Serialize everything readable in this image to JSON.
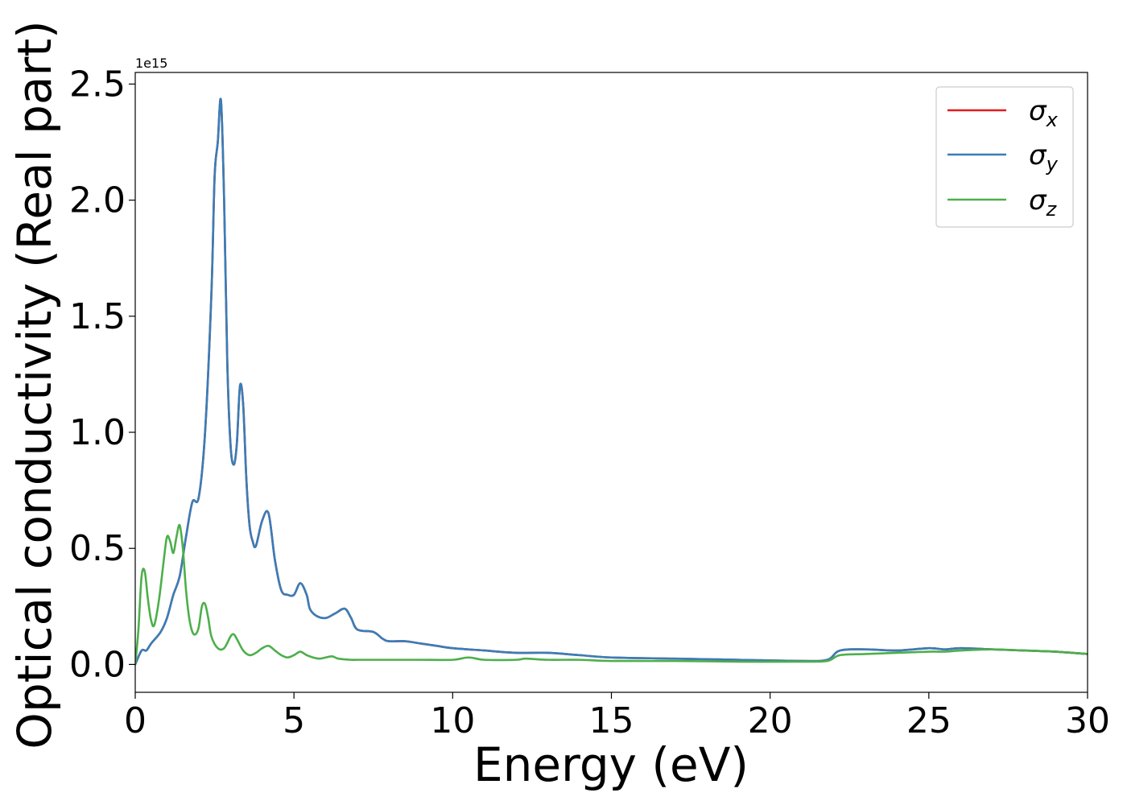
{
  "chart_data": {
    "type": "line",
    "xlabel": "Energy (eV)",
    "ylabel": "Optical conductivity (Real part)",
    "y_offset_label": "1e15",
    "y_scale": 1000000000000000.0,
    "xlim": [
      0,
      30
    ],
    "ylim": [
      -0.12,
      2.55
    ],
    "xticks": [
      0,
      5,
      10,
      15,
      20,
      25,
      30
    ],
    "xtick_labels": [
      "0",
      "5",
      "10",
      "15",
      "20",
      "25",
      "30"
    ],
    "yticks": [
      0.0,
      0.5,
      1.0,
      1.5,
      2.0,
      2.5
    ],
    "ytick_labels": [
      "0.0",
      "0.5",
      "1.0",
      "1.5",
      "2.0",
      "2.5"
    ],
    "grid": false,
    "legend_position": "top-right",
    "series": [
      {
        "name": "σx",
        "symbol": "σ",
        "subscript": "x",
        "color": "#e41a1c",
        "x": [
          0,
          0.2,
          0.35,
          0.5,
          0.8,
          1.0,
          1.2,
          1.4,
          1.6,
          1.8,
          2.0,
          2.2,
          2.4,
          2.5,
          2.6,
          2.7,
          2.8,
          2.9,
          3.0,
          3.1,
          3.2,
          3.3,
          3.4,
          3.5,
          3.6,
          3.7,
          3.8,
          4.0,
          4.2,
          4.4,
          4.6,
          4.8,
          5.0,
          5.2,
          5.4,
          5.5,
          5.7,
          6.0,
          6.3,
          6.6,
          6.8,
          7.0,
          7.5,
          7.8,
          8.0,
          8.5,
          9.0,
          9.5,
          10,
          11,
          12,
          13,
          14,
          15,
          17,
          19,
          21,
          21.8,
          22.2,
          23,
          24,
          25,
          25.5,
          26,
          27,
          28,
          29,
          30
        ],
        "y": [
          0,
          0.06,
          0.06,
          0.09,
          0.14,
          0.2,
          0.3,
          0.38,
          0.55,
          0.7,
          0.72,
          1.0,
          1.6,
          2.1,
          2.25,
          2.43,
          2.0,
          1.3,
          0.95,
          0.86,
          0.95,
          1.2,
          1.12,
          0.8,
          0.6,
          0.53,
          0.51,
          0.62,
          0.65,
          0.45,
          0.32,
          0.3,
          0.3,
          0.35,
          0.3,
          0.24,
          0.21,
          0.2,
          0.22,
          0.24,
          0.2,
          0.15,
          0.14,
          0.11,
          0.1,
          0.1,
          0.09,
          0.08,
          0.07,
          0.06,
          0.05,
          0.05,
          0.04,
          0.03,
          0.025,
          0.02,
          0.015,
          0.02,
          0.06,
          0.065,
          0.06,
          0.07,
          0.065,
          0.07,
          0.065,
          0.06,
          0.055,
          0.045
        ]
      },
      {
        "name": "σy",
        "symbol": "σ",
        "subscript": "y",
        "color": "#377eb8",
        "x": [
          0,
          0.2,
          0.35,
          0.5,
          0.8,
          1.0,
          1.2,
          1.4,
          1.6,
          1.8,
          2.0,
          2.2,
          2.4,
          2.5,
          2.6,
          2.7,
          2.8,
          2.9,
          3.0,
          3.1,
          3.2,
          3.3,
          3.4,
          3.5,
          3.6,
          3.7,
          3.8,
          4.0,
          4.2,
          4.4,
          4.6,
          4.8,
          5.0,
          5.2,
          5.4,
          5.5,
          5.7,
          6.0,
          6.3,
          6.6,
          6.8,
          7.0,
          7.5,
          7.8,
          8.0,
          8.5,
          9.0,
          9.5,
          10,
          11,
          12,
          13,
          14,
          15,
          17,
          19,
          21,
          21.8,
          22.2,
          23,
          24,
          25,
          25.5,
          26,
          27,
          28,
          29,
          30
        ],
        "y": [
          0,
          0.06,
          0.06,
          0.09,
          0.14,
          0.2,
          0.3,
          0.38,
          0.55,
          0.7,
          0.72,
          1.0,
          1.6,
          2.1,
          2.25,
          2.43,
          2.0,
          1.3,
          0.95,
          0.86,
          0.95,
          1.2,
          1.12,
          0.8,
          0.6,
          0.53,
          0.51,
          0.62,
          0.65,
          0.45,
          0.32,
          0.3,
          0.3,
          0.35,
          0.3,
          0.24,
          0.21,
          0.2,
          0.22,
          0.24,
          0.2,
          0.15,
          0.14,
          0.11,
          0.1,
          0.1,
          0.09,
          0.08,
          0.07,
          0.06,
          0.05,
          0.05,
          0.04,
          0.03,
          0.025,
          0.02,
          0.015,
          0.02,
          0.06,
          0.065,
          0.06,
          0.07,
          0.065,
          0.07,
          0.065,
          0.06,
          0.055,
          0.045
        ]
      },
      {
        "name": "σz",
        "symbol": "σ",
        "subscript": "z",
        "color": "#4daf4a",
        "x": [
          0,
          0.1,
          0.2,
          0.3,
          0.4,
          0.5,
          0.6,
          0.75,
          0.9,
          1.0,
          1.1,
          1.2,
          1.3,
          1.4,
          1.5,
          1.6,
          1.7,
          1.8,
          1.9,
          2.0,
          2.1,
          2.2,
          2.3,
          2.4,
          2.6,
          2.8,
          3.0,
          3.1,
          3.2,
          3.4,
          3.6,
          3.8,
          4.0,
          4.2,
          4.4,
          4.6,
          4.8,
          5.0,
          5.2,
          5.4,
          5.6,
          5.8,
          6.0,
          6.2,
          6.4,
          6.8,
          7.0,
          7.5,
          8,
          9,
          10,
          10.5,
          11,
          12,
          12.3,
          13,
          14,
          15,
          17,
          19,
          21,
          21.8,
          22.2,
          23,
          24,
          25,
          25.5,
          26,
          27,
          28,
          29,
          30
        ],
        "y": [
          0,
          0.15,
          0.38,
          0.4,
          0.28,
          0.19,
          0.17,
          0.28,
          0.45,
          0.55,
          0.53,
          0.48,
          0.55,
          0.6,
          0.5,
          0.32,
          0.2,
          0.14,
          0.13,
          0.16,
          0.25,
          0.26,
          0.2,
          0.12,
          0.07,
          0.07,
          0.12,
          0.13,
          0.11,
          0.06,
          0.04,
          0.05,
          0.07,
          0.08,
          0.06,
          0.04,
          0.03,
          0.04,
          0.055,
          0.04,
          0.03,
          0.025,
          0.03,
          0.035,
          0.025,
          0.02,
          0.02,
          0.02,
          0.02,
          0.02,
          0.02,
          0.03,
          0.02,
          0.02,
          0.025,
          0.02,
          0.02,
          0.015,
          0.015,
          0.012,
          0.012,
          0.015,
          0.04,
          0.045,
          0.05,
          0.055,
          0.055,
          0.06,
          0.065,
          0.06,
          0.055,
          0.045
        ]
      }
    ]
  }
}
